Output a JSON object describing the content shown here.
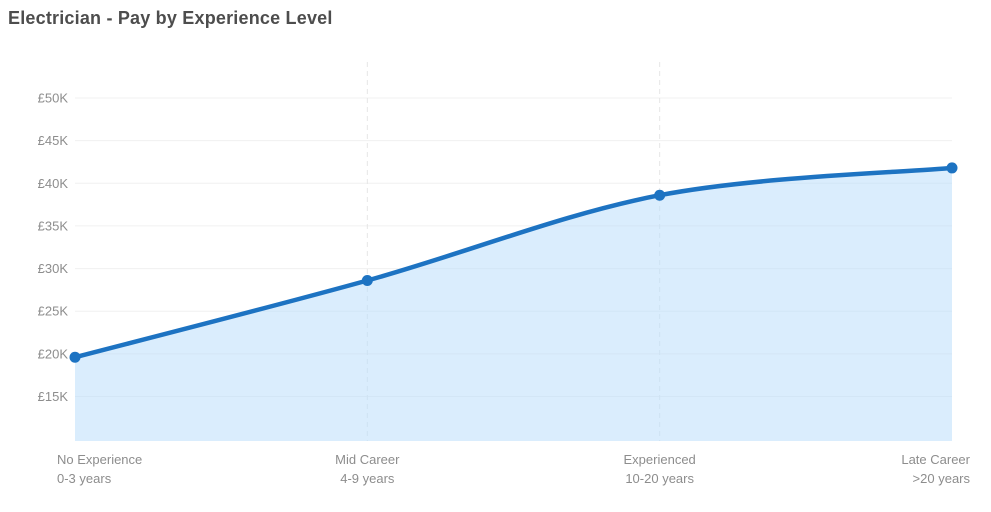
{
  "colors": {
    "line": "#1d73c2",
    "point": "#1d73c2",
    "area_fill": "#bbdefb",
    "grid_horizontal": "#f0f0f0",
    "grid_vertical_dashed": "#e6e6e6",
    "axis_text": "#8d8d8d",
    "title_text": "#4d4d4d",
    "background": "#ffffff"
  },
  "chart_data": {
    "type": "area",
    "title": "Electrician - Pay by Experience Level",
    "categories": [
      "No Experience",
      "Mid Career",
      "Experienced",
      "Late Career"
    ],
    "category_sublabels": [
      "0-3 years",
      "4-9 years",
      "10-20 years",
      ">20 years"
    ],
    "values": [
      19600,
      28600,
      38600,
      41800
    ],
    "currency": "GBP",
    "yticks": [
      15000,
      20000,
      25000,
      30000,
      35000,
      40000,
      45000,
      50000
    ],
    "ytick_labels": [
      "£15K",
      "£20K",
      "£25K",
      "£30K",
      "£35K",
      "£40K",
      "£45K",
      "£50K"
    ],
    "ylim": [
      15000,
      50000
    ],
    "xlabel": "",
    "ylabel": "",
    "grid": true,
    "legend": false,
    "smooth": true
  }
}
